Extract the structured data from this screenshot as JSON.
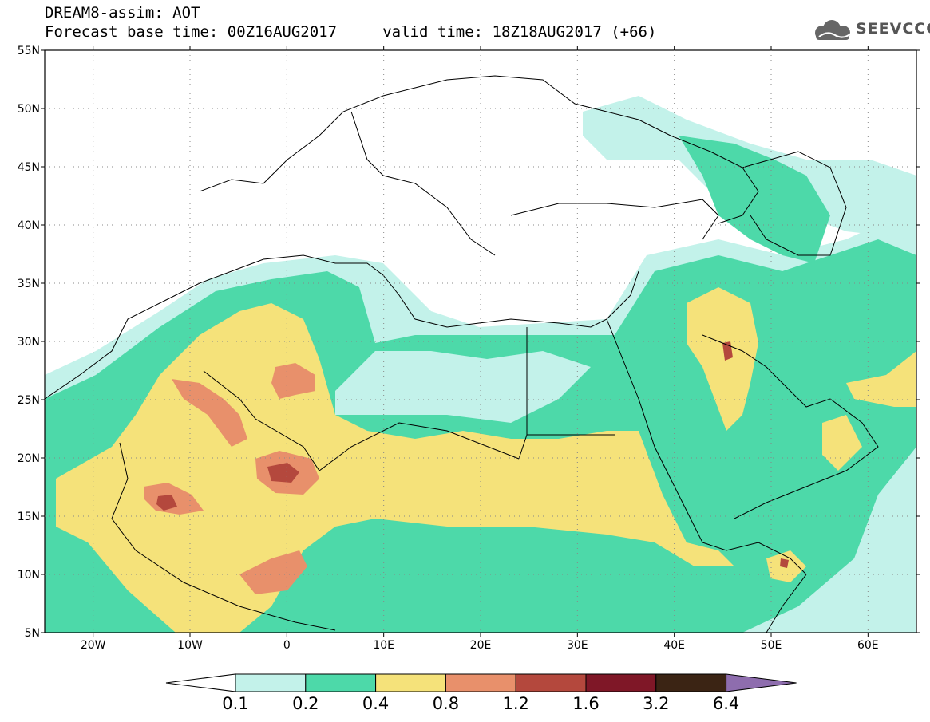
{
  "header": {
    "title_line1": "DREAM8-assim: AOT",
    "title_line2": "Forecast base time: 00Z16AUG2017     valid time: 18Z18AUG2017 (+66)",
    "logo_text": "SEEVCCC",
    "logo_icon": "cloud-logo-icon"
  },
  "map": {
    "region": "North Africa / Middle East / Southern Europe",
    "lat_ticks": [
      "55N",
      "50N",
      "45N",
      "40N",
      "35N",
      "30N",
      "25N",
      "20N",
      "15N",
      "10N",
      "5N"
    ],
    "lon_ticks": [
      "20W",
      "10W",
      "0",
      "10E",
      "20E",
      "30E",
      "40E",
      "50E",
      "60E"
    ],
    "lat_range": [
      5,
      55
    ],
    "lon_range": [
      -25,
      65
    ]
  },
  "colorbar": {
    "labels": [
      "0.1",
      "0.2",
      "0.4",
      "0.8",
      "1.2",
      "1.6",
      "3.2",
      "6.4"
    ],
    "colors": [
      "#c3f2ea",
      "#4dd9a9",
      "#f5e27a",
      "#e8906b",
      "#b4483d",
      "#7f1727",
      "#3b2414",
      "#8e6dae"
    ],
    "under_color": "#ffffff"
  }
}
